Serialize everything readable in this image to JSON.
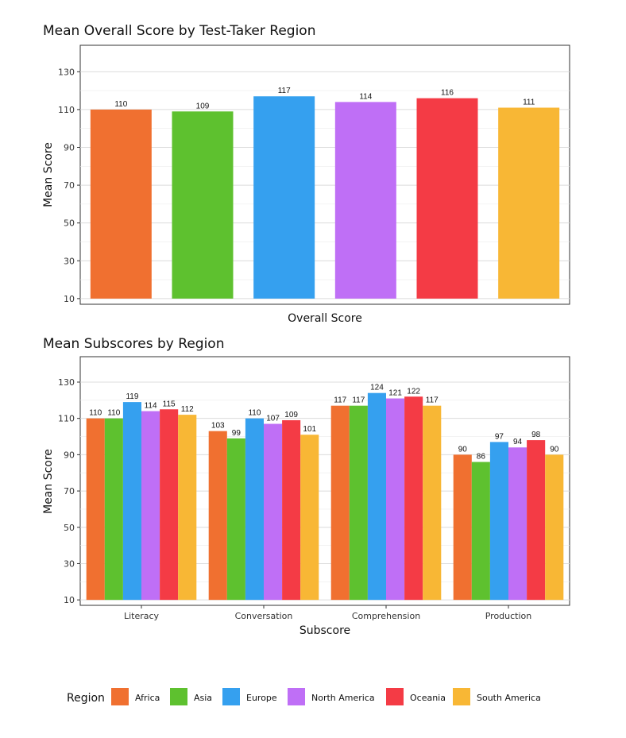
{
  "colors": {
    "Africa": "#f07030",
    "Asia": "#5ec12f",
    "Europe": "#35a0ef",
    "North America": "#bf6ff6",
    "Oceania": "#f43b45",
    "South America": "#f8b735"
  },
  "chart_data": [
    {
      "type": "bar",
      "title": "Mean Overall Score by Test-Taker Region",
      "xlabel": "Overall Score",
      "ylabel": "Mean Score",
      "ylim": [
        7,
        144
      ],
      "yticks": [
        10,
        30,
        50,
        70,
        90,
        110,
        130
      ],
      "grid": true,
      "categories": [
        "Africa",
        "Asia",
        "Europe",
        "North America",
        "Oceania",
        "South America"
      ],
      "values": [
        110,
        109,
        117,
        114,
        116,
        111
      ],
      "value_labels": [
        "110",
        "109",
        "117",
        "114",
        "116",
        "111"
      ]
    },
    {
      "type": "bar",
      "title": "Mean Subscores by Region",
      "xlabel": "Subscore",
      "ylabel": "Mean Score",
      "ylim": [
        7,
        144
      ],
      "yticks": [
        10,
        30,
        50,
        70,
        90,
        110,
        130
      ],
      "grid": true,
      "categories": [
        "Literacy",
        "Conversation",
        "Comprehension",
        "Production"
      ],
      "series": [
        {
          "name": "Africa",
          "values": [
            110,
            103,
            117,
            90
          ]
        },
        {
          "name": "Asia",
          "values": [
            110,
            99,
            117,
            86
          ]
        },
        {
          "name": "Europe",
          "values": [
            119,
            110,
            124,
            97
          ]
        },
        {
          "name": "North America",
          "values": [
            114,
            107,
            121,
            94
          ]
        },
        {
          "name": "Oceania",
          "values": [
            115,
            109,
            122,
            98
          ]
        },
        {
          "name": "South America",
          "values": [
            112,
            101,
            117,
            90
          ]
        }
      ]
    }
  ],
  "legend": {
    "title": "Region",
    "position": "bottom",
    "items": [
      "Africa",
      "Asia",
      "Europe",
      "North America",
      "Oceania",
      "South America"
    ]
  }
}
